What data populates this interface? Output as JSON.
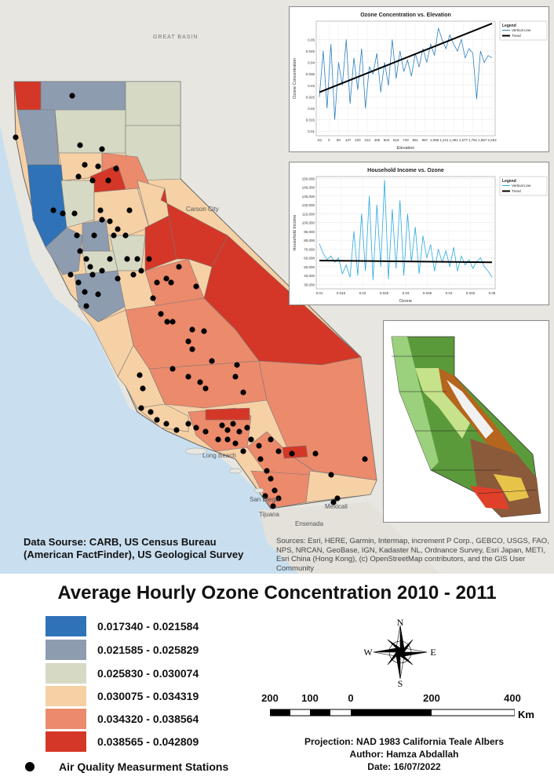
{
  "map": {
    "basemap_labels": [
      "GREAT BASIN"
    ],
    "cities": [
      "Carson City",
      "Mexicali",
      "Tijuana",
      "San Diego",
      "Long Beach",
      "Ensenada"
    ],
    "class_colors": [
      "#2f72b8",
      "#8e9cb0",
      "#d6d9c4",
      "#f6d1a6",
      "#ec8a6c",
      "#d43727"
    ]
  },
  "chart1": {
    "chart_data": {
      "type": "line",
      "title": "Ozone Concentration vs. Elevation",
      "xlabel": "Elevation",
      "ylabel": "Ozone Concentration",
      "x_ticks": [
        "-61",
        "0",
        "50",
        "127",
        "220",
        "313",
        "406",
        "504",
        "619",
        "740",
        "851",
        "967",
        "1,096",
        "1,241",
        "1,391",
        "1,577",
        "1,791",
        "1,967",
        "2,253"
      ],
      "y_ticks": [
        "0.01",
        "0.015",
        "0.02",
        "0.025",
        "0.03",
        "0.035",
        "0.04",
        "0.045",
        "0.05"
      ],
      "ylim": [
        0.008,
        0.058
      ],
      "legend": {
        "title": "Legend",
        "items": [
          "Vertical Line",
          "Trend"
        ],
        "position": "top-right"
      },
      "series": [
        {
          "name": "Vertical Line",
          "color": "#2a7fc0"
        },
        {
          "name": "Trend",
          "color": "#000000",
          "trend": [
            0.027,
            0.057
          ]
        }
      ]
    }
  },
  "chart2": {
    "chart_data": {
      "type": "line",
      "title": "Household Income vs. Ozone",
      "xlabel": "Ozone",
      "ylabel": "Household Income",
      "x_ticks": [
        "0.01",
        "0.015",
        "0.02",
        "0.025",
        "0.03",
        "0.035",
        "0.04",
        "0.045",
        "0.05"
      ],
      "y_ticks": [
        "30,000",
        "40,000",
        "50,000",
        "60,000",
        "70,000",
        "80,000",
        "90,000",
        "100,000",
        "110,000",
        "120,000",
        "130,000",
        "140,000",
        "150,000"
      ],
      "ylim": [
        25000,
        152000
      ],
      "legend": {
        "title": "Legend",
        "items": [
          "Vertical Line",
          "Trend"
        ],
        "position": "top-right"
      },
      "series": [
        {
          "name": "Vertical Line",
          "color": "#29a9e0"
        },
        {
          "name": "Trend",
          "color": "#000000",
          "trend": [
            57000,
            55000
          ]
        }
      ]
    }
  },
  "data_source": [
    "Data Sourse: CARB, US Census Bureau",
    "(American FactFinder), US Geological Survey"
  ],
  "sources": "Sources: Esri, HERE, Garmin, Intermap, increment P Corp., GEBCO, USGS, FAO, NPS, NRCAN, GeoBase, IGN, Kadaster NL, Ordnance Survey, Esri Japan, METI, Esri China (Hong Kong), (c) OpenStreetMap contributors, and the GIS User Community",
  "title": "Average Hourly Ozone Concentration 2010 - 2011",
  "legend": {
    "classes": [
      {
        "label": "0.017340 - 0.021584",
        "color": "#2f72b8"
      },
      {
        "label": "0.021585 - 0.025829",
        "color": "#8e9cb0"
      },
      {
        "label": "0.025830 - 0.030074",
        "color": "#d6d9c4"
      },
      {
        "label": "0.030075 - 0.034319",
        "color": "#f6d1a6"
      },
      {
        "label": "0.034320 - 0.038564",
        "color": "#ec8a6c"
      },
      {
        "label": "0.038565 - 0.042809",
        "color": "#d43727"
      }
    ],
    "stations_label": "Air Quality Measurment Stations"
  },
  "compass": {
    "n": "N",
    "s": "S",
    "e": "E",
    "w": "W"
  },
  "scalebar": {
    "ticks": [
      "200",
      "100",
      "0",
      "200",
      "400"
    ],
    "unit": "Km"
  },
  "info": {
    "projection": "Projection: NAD 1983 California Teale Albers",
    "author": "Author: Hamza Abdallah",
    "date": "Date: 16/07/2022"
  }
}
